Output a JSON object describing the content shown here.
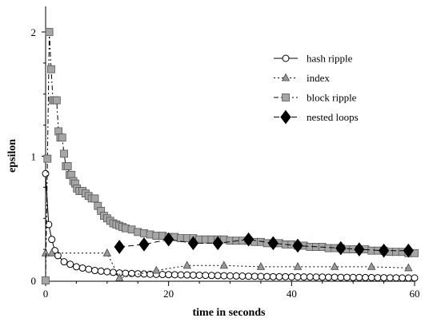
{
  "chart_data": {
    "type": "line",
    "title": "",
    "xlabel": "time in seconds",
    "ylabel": "epsilon",
    "xlim": [
      0,
      60
    ],
    "ylim": [
      0,
      2.2
    ],
    "xticks": [
      0,
      20,
      40,
      60
    ],
    "yticks": [
      0,
      1,
      2
    ],
    "grid": false,
    "legend_position": "top-right",
    "series": [
      {
        "name": "hash ripple",
        "marker": "circle",
        "line_style": "solid",
        "color": "#000000",
        "x": [
          0,
          0.5,
          1,
          1.5,
          2,
          3,
          4,
          5,
          6,
          7,
          8,
          9,
          10,
          11,
          12,
          13,
          14,
          15,
          16,
          17,
          18,
          19,
          20,
          21,
          22,
          23,
          24,
          25,
          26,
          27,
          28,
          29,
          30,
          31,
          32,
          33,
          34,
          35,
          36,
          37,
          38,
          39,
          40,
          41,
          42,
          43,
          44,
          45,
          46,
          47,
          48,
          49,
          50,
          51,
          52,
          53,
          54,
          55,
          56,
          57,
          58,
          59,
          60
        ],
        "y": [
          0.86,
          0.45,
          0.33,
          0.24,
          0.2,
          0.15,
          0.13,
          0.11,
          0.1,
          0.09,
          0.08,
          0.075,
          0.07,
          0.065,
          0.06,
          0.058,
          0.056,
          0.054,
          0.052,
          0.05,
          0.049,
          0.048,
          0.047,
          0.046,
          0.045,
          0.044,
          0.043,
          0.042,
          0.041,
          0.04,
          0.039,
          0.038,
          0.037,
          0.036,
          0.035,
          0.034,
          0.033,
          0.032,
          0.031,
          0.03,
          0.03,
          0.03,
          0.029,
          0.029,
          0.028,
          0.028,
          0.027,
          0.027,
          0.026,
          0.026,
          0.025,
          0.025,
          0.024,
          0.024,
          0.023,
          0.023,
          0.022,
          0.022,
          0.021,
          0.021,
          0.02,
          0.02,
          0.02
        ]
      },
      {
        "name": "index",
        "marker": "triangle",
        "line_style": "dotted",
        "color": "#999999",
        "x": [
          0,
          1,
          10,
          12,
          18,
          23,
          29,
          35,
          41,
          47,
          53,
          59
        ],
        "y": [
          0.22,
          0.22,
          0.22,
          0.02,
          0.08,
          0.12,
          0.12,
          0.11,
          0.11,
          0.11,
          0.11,
          0.1
        ]
      },
      {
        "name": "block ripple",
        "marker": "square",
        "line_style": "dash-dot",
        "color": "#a6a6a6",
        "x": [
          0,
          0.3,
          0.6,
          0.9,
          1.2,
          1.5,
          1.8,
          2.1,
          2.4,
          2.7,
          3,
          3.3,
          3.6,
          3.9,
          4.2,
          4.5,
          4.8,
          5.1,
          5.5,
          6,
          6.5,
          7,
          7.5,
          8,
          8.5,
          9,
          9.5,
          10,
          10.5,
          11,
          11.5,
          12,
          12.5,
          13,
          14,
          15,
          16,
          17,
          18,
          19,
          20,
          21,
          22,
          23,
          24,
          25,
          26,
          27,
          28,
          29,
          30,
          31,
          32,
          33,
          34,
          35,
          36,
          37,
          38,
          39,
          40,
          41,
          42,
          43,
          44,
          45,
          46,
          47,
          48,
          49,
          50,
          51,
          52,
          53,
          54,
          55,
          56,
          57,
          58,
          59,
          60
        ],
        "y": [
          0.0,
          0.98,
          2.0,
          1.7,
          1.45,
          1.45,
          1.45,
          1.2,
          1.15,
          1.15,
          1.02,
          0.92,
          0.92,
          0.85,
          0.85,
          0.8,
          0.78,
          0.74,
          0.72,
          0.72,
          0.7,
          0.68,
          0.66,
          0.66,
          0.6,
          0.56,
          0.52,
          0.5,
          0.48,
          0.46,
          0.45,
          0.44,
          0.43,
          0.42,
          0.41,
          0.39,
          0.38,
          0.37,
          0.36,
          0.36,
          0.35,
          0.35,
          0.34,
          0.34,
          0.34,
          0.33,
          0.33,
          0.33,
          0.33,
          0.33,
          0.32,
          0.32,
          0.32,
          0.32,
          0.31,
          0.31,
          0.3,
          0.3,
          0.3,
          0.29,
          0.29,
          0.28,
          0.28,
          0.27,
          0.27,
          0.27,
          0.26,
          0.26,
          0.26,
          0.25,
          0.25,
          0.25,
          0.25,
          0.24,
          0.24,
          0.24,
          0.23,
          0.23,
          0.23,
          0.22,
          0.22
        ]
      },
      {
        "name": "nested loops",
        "marker": "diamond",
        "line_style": "dashed",
        "color": "#000000",
        "x": [
          12,
          16,
          20,
          24,
          28,
          33,
          37,
          41,
          48,
          51,
          55,
          59
        ],
        "y": [
          0.27,
          0.29,
          0.33,
          0.3,
          0.3,
          0.33,
          0.3,
          0.28,
          0.26,
          0.25,
          0.24,
          0.24
        ]
      }
    ]
  }
}
